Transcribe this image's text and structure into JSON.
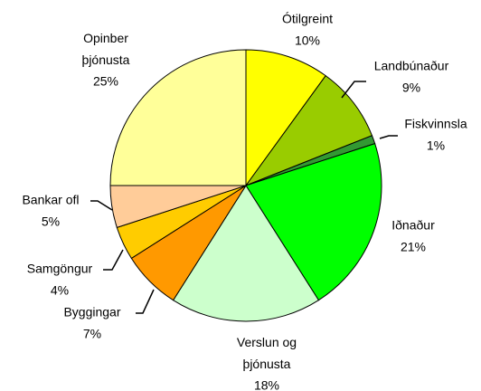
{
  "chart_data": {
    "type": "pie",
    "categories": [
      "Ótilgreint",
      "Landbúnaður",
      "Fiskvinnsla",
      "Iðnaður",
      "Verslun og þjónusta",
      "Byggingar",
      "Samgöngur",
      "Bankar ofl",
      "Opinber þjónusta"
    ],
    "values": [
      10,
      9,
      1,
      21,
      18,
      7,
      4,
      5,
      25
    ],
    "value_labels": [
      "10%",
      "9%",
      "1%",
      "21%",
      "18%",
      "7%",
      "4%",
      "5%",
      "25%"
    ],
    "colors": [
      "#ffff00",
      "#99cc00",
      "#339933",
      "#00ff00",
      "#ccffcc",
      "#ff9900",
      "#ffcc00",
      "#ffcc99",
      "#ffff99"
    ]
  }
}
